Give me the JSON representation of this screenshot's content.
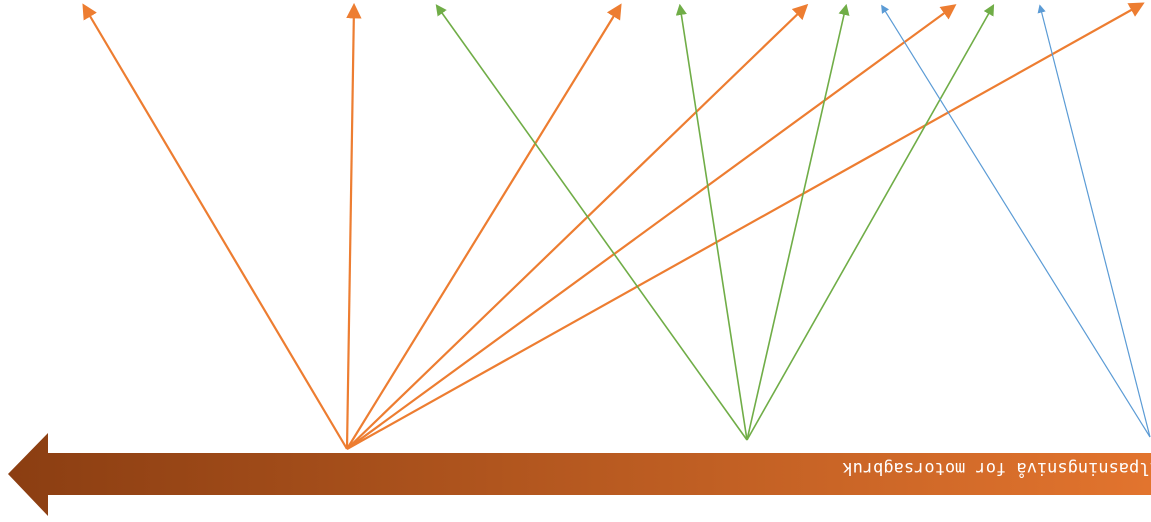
{
  "diagram": {
    "colors": {
      "orange": "#ED7D31",
      "green": "#70AD47",
      "blue": "#5B9BD5",
      "arrow_gradient_start": "#8B3E12",
      "arrow_gradient_end": "#E2742E"
    },
    "timeline_arrow": {
      "label": "Tilpasningsnivå for motorsagbruk",
      "label_orientation": "upside-down",
      "direction": "left"
    },
    "groups": [
      {
        "name": "orange",
        "color_key": "orange",
        "ray_count": 6
      },
      {
        "name": "green",
        "color_key": "green",
        "ray_count": 4
      },
      {
        "name": "blue",
        "color_key": "blue",
        "ray_count": 2
      }
    ]
  }
}
